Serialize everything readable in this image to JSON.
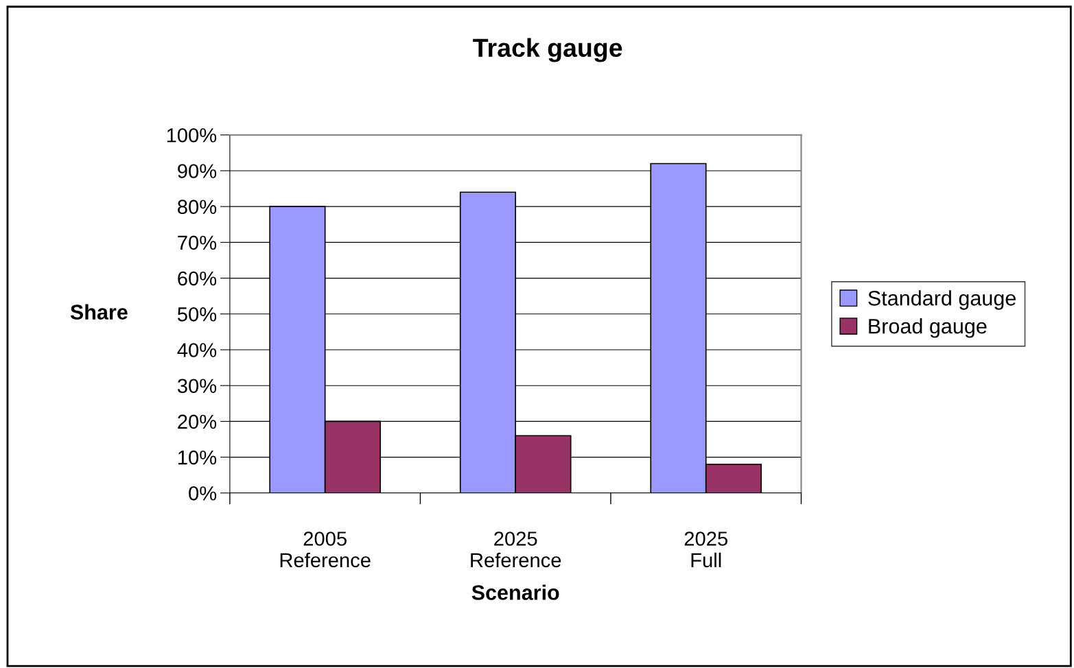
{
  "chart_data": {
    "type": "bar",
    "title": "Track gauge",
    "xlabel": "Scenario",
    "ylabel": "Share",
    "categories": [
      "2005\nReference",
      "2025\nReference",
      "2025\nFull"
    ],
    "series": [
      {
        "name": "Standard gauge",
        "color": "#9999ff",
        "values": [
          80,
          84,
          92
        ]
      },
      {
        "name": "Broad gauge",
        "color": "#993366",
        "values": [
          20,
          16,
          8
        ]
      }
    ],
    "ylim": [
      0,
      100
    ],
    "yticks": [
      {
        "value": 0,
        "label": "0%"
      },
      {
        "value": 10,
        "label": "10%"
      },
      {
        "value": 20,
        "label": "20%"
      },
      {
        "value": 30,
        "label": "30%"
      },
      {
        "value": 40,
        "label": "40%"
      },
      {
        "value": 50,
        "label": "50%"
      },
      {
        "value": 60,
        "label": "60%"
      },
      {
        "value": 70,
        "label": "70%"
      },
      {
        "value": 80,
        "label": "80%"
      },
      {
        "value": 90,
        "label": "90%"
      },
      {
        "value": 100,
        "label": "100%"
      }
    ],
    "grid": "y",
    "legend": "right"
  }
}
